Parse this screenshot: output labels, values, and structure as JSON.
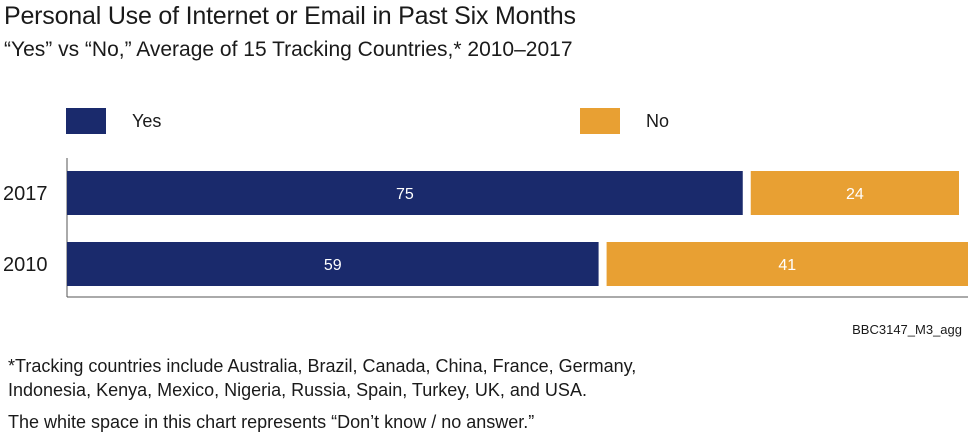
{
  "chart_data": {
    "type": "bar",
    "orientation": "horizontal",
    "stacked": true,
    "title": "Personal Use of Internet or Email in Past Six Months",
    "subtitle": "“Yes” vs “No,” Average of 15 Tracking Countries,* 2010–2017",
    "categories": [
      "2017",
      "2010"
    ],
    "series": [
      {
        "name": "Yes",
        "color": "#1a2a6c",
        "values": [
          75,
          59
        ]
      },
      {
        "name": "No",
        "color": "#e8a033",
        "values": [
          24,
          41
        ]
      }
    ],
    "xlim": [
      0,
      100
    ],
    "legend_position": "top",
    "source_code": "BBC3147_M3_agg",
    "footnotes": [
      "*Tracking countries include Australia, Brazil, Canada, China, France, Germany,",
      "Indonesia, Kenya, Mexico, Nigeria, Russia, Spain, Turkey, UK, and USA.",
      "The white space in this chart represents “Don’t know / no answer.”"
    ]
  }
}
